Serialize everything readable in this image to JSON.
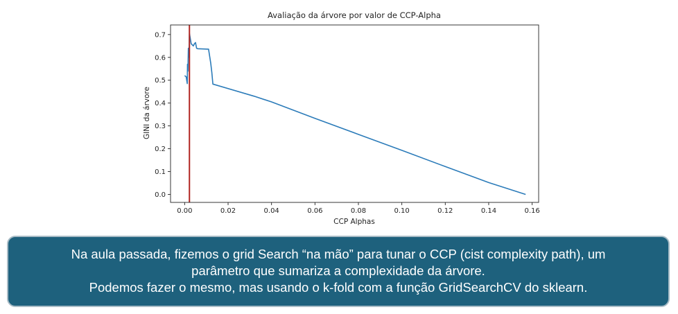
{
  "chart_data": {
    "type": "line",
    "title": "Avaliação da árvore por valor de CCP-Alpha",
    "xlabel": "CCP Alphas",
    "ylabel": "GINI da árvore",
    "xlim": [
      -0.0065,
      0.163
    ],
    "ylim": [
      -0.035,
      0.742
    ],
    "xticks": [
      0.0,
      0.02,
      0.04,
      0.06,
      0.08,
      0.1,
      0.12,
      0.14,
      0.16
    ],
    "xtick_labels": [
      "0.00",
      "0.02",
      "0.04",
      "0.06",
      "0.08",
      "0.10",
      "0.12",
      "0.14",
      "0.16"
    ],
    "yticks": [
      0.0,
      0.1,
      0.2,
      0.3,
      0.4,
      0.5,
      0.6,
      0.7
    ],
    "ytick_labels": [
      "0.0",
      "0.1",
      "0.2",
      "0.3",
      "0.4",
      "0.5",
      "0.6",
      "0.7"
    ],
    "grid": false,
    "series": [
      {
        "color": "#2b7bb9",
        "x": [
          0.0,
          0.0007,
          0.0012,
          0.0013,
          0.0015,
          0.0017,
          0.002,
          0.0022,
          0.003,
          0.0035,
          0.004,
          0.0045,
          0.005,
          0.0055,
          0.006,
          0.011,
          0.012,
          0.0125,
          0.013,
          0.032,
          0.04,
          0.06,
          0.08,
          0.1,
          0.12,
          0.14,
          0.157
        ],
        "y": [
          0.52,
          0.515,
          0.485,
          0.57,
          0.54,
          0.64,
          0.6,
          0.705,
          0.66,
          0.655,
          0.65,
          0.66,
          0.665,
          0.64,
          0.638,
          0.636,
          0.575,
          0.535,
          0.483,
          0.43,
          0.405,
          0.333,
          0.263,
          0.193,
          0.122,
          0.052,
          0.0
        ]
      }
    ],
    "vline": {
      "x": 0.0022,
      "color": "#b02420"
    }
  },
  "callout": {
    "line1": "Na aula passada, fizemos o grid Search “na mão” para tunar o CCP (cist complexity path), um",
    "line2": "parâmetro que sumariza a complexidade da árvore.",
    "line3": "Podemos fazer o mesmo, mas usando o k-fold com a função GridSearchCV do sklearn."
  }
}
